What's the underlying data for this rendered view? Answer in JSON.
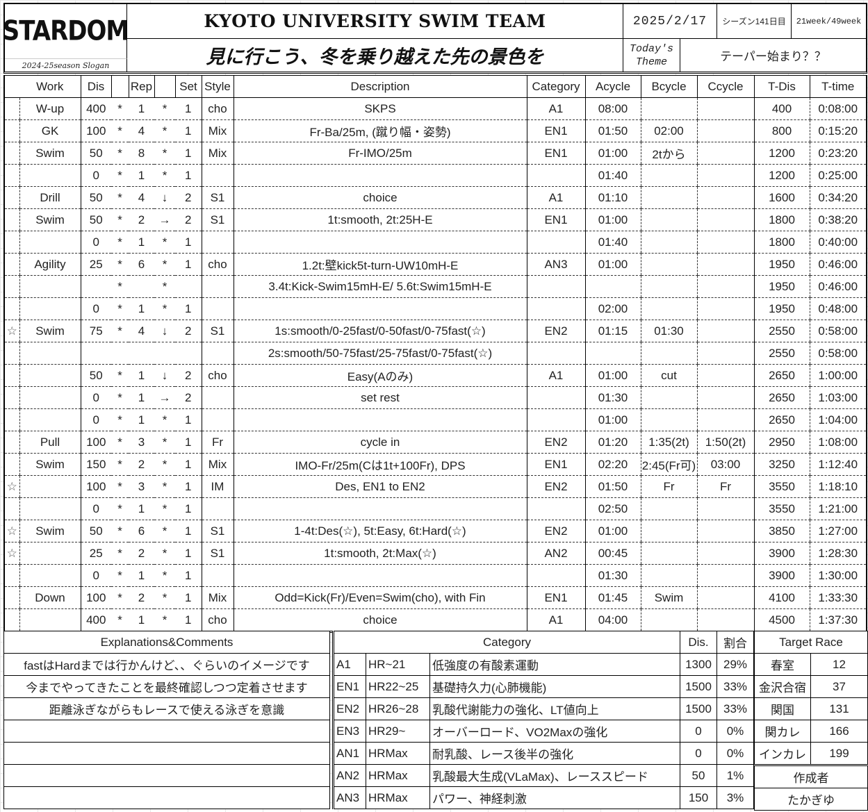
{
  "header": {
    "logo": "STARDOM",
    "slogan_label": "2024-25season Slogan",
    "team_title": "KYOTO UNIVERSITY SWIM TEAM",
    "slogan": "見に行こう、冬を乗り越えた先の景色を",
    "date": "2025/2/17",
    "season_day": "シーズン141日目",
    "week": "21week/49week",
    "theme_label_1": "Today's",
    "theme_label_2": "Theme",
    "theme": "テーパー始まり？？"
  },
  "columns": [
    "",
    "Work",
    "Dis",
    "",
    "Rep",
    "",
    "Set",
    "Style",
    "Description",
    "Category",
    "Acycle",
    "Bcycle",
    "Ccycle",
    "T-Dis",
    "T-time"
  ],
  "rows": [
    [
      "",
      "W-up",
      "400",
      "*",
      "1",
      "*",
      "1",
      "cho",
      "SKPS",
      "A1",
      "08:00",
      "",
      "",
      "400",
      "0:08:00"
    ],
    [
      "",
      "GK",
      "100",
      "*",
      "4",
      "*",
      "1",
      "Mix",
      "Fr-Ba/25m, (蹴り幅・姿勢)",
      "EN1",
      "01:50",
      "02:00",
      "",
      "800",
      "0:15:20"
    ],
    [
      "",
      "Swim",
      "50",
      "*",
      "8",
      "*",
      "1",
      "Mix",
      "Fr-IMO/25m",
      "EN1",
      "01:00",
      "2tから",
      "",
      "1200",
      "0:23:20"
    ],
    [
      "",
      "",
      "0",
      "*",
      "1",
      "*",
      "1",
      "",
      "",
      "",
      "01:40",
      "",
      "",
      "1200",
      "0:25:00"
    ],
    [
      "",
      "Drill",
      "50",
      "*",
      "4",
      "↓",
      "2",
      "S1",
      "choice",
      "A1",
      "01:10",
      "",
      "",
      "1600",
      "0:34:20"
    ],
    [
      "",
      "Swim",
      "50",
      "*",
      "2",
      "→",
      "2",
      "S1",
      "1t:smooth, 2t:25H-E",
      "EN1",
      "01:00",
      "",
      "",
      "1800",
      "0:38:20"
    ],
    [
      "",
      "",
      "0",
      "*",
      "1",
      "*",
      "1",
      "",
      "",
      "",
      "01:40",
      "",
      "",
      "1800",
      "0:40:00"
    ],
    [
      "",
      "Agility",
      "25",
      "*",
      "6",
      "*",
      "1",
      "cho",
      "1.2t:壁kick5t-turn-UW10mH-E",
      "AN3",
      "01:00",
      "",
      "",
      "1950",
      "0:46:00"
    ],
    [
      "",
      "",
      "",
      "*",
      "",
      "*",
      "",
      "",
      "3.4t:Kick-Swim15mH-E/ 5.6t:Swim15mH-E",
      "",
      "",
      "",
      "",
      "1950",
      "0:46:00"
    ],
    [
      "",
      "",
      "0",
      "*",
      "1",
      "*",
      "1",
      "",
      "",
      "",
      "02:00",
      "",
      "",
      "1950",
      "0:48:00"
    ],
    [
      "☆",
      "Swim",
      "75",
      "*",
      "4",
      "↓",
      "2",
      "S1",
      "1s:smooth/0-25fast/0-50fast/0-75fast(☆)",
      "EN2",
      "01:15",
      "01:30",
      "",
      "2550",
      "0:58:00"
    ],
    [
      "",
      "",
      "",
      "",
      "",
      "",
      "",
      "",
      "2s:smooth/50-75fast/25-75fast/0-75fast(☆)",
      "",
      "",
      "",
      "",
      "2550",
      "0:58:00"
    ],
    [
      "",
      "",
      "50",
      "*",
      "1",
      "↓",
      "2",
      "cho",
      "Easy(Aのみ)",
      "A1",
      "01:00",
      "cut",
      "",
      "2650",
      "1:00:00"
    ],
    [
      "",
      "",
      "0",
      "*",
      "1",
      "→",
      "2",
      "",
      "set rest",
      "",
      "01:30",
      "",
      "",
      "2650",
      "1:03:00"
    ],
    [
      "",
      "",
      "0",
      "*",
      "1",
      "*",
      "1",
      "",
      "",
      "",
      "01:00",
      "",
      "",
      "2650",
      "1:04:00"
    ],
    [
      "",
      "Pull",
      "100",
      "*",
      "3",
      "*",
      "1",
      "Fr",
      "cycle in",
      "EN2",
      "01:20",
      "1:35(2t)",
      "1:50(2t)",
      "2950",
      "1:08:00"
    ],
    [
      "",
      "Swim",
      "150",
      "*",
      "2",
      "*",
      "1",
      "Mix",
      "IMO-Fr/25m(Cは1t+100Fr), DPS",
      "EN1",
      "02:20",
      "2:45(Fr可)",
      "03:00",
      "3250",
      "1:12:40"
    ],
    [
      "☆",
      "",
      "100",
      "*",
      "3",
      "*",
      "1",
      "IM",
      "Des, EN1 to EN2",
      "EN2",
      "01:50",
      "Fr",
      "Fr",
      "3550",
      "1:18:10"
    ],
    [
      "",
      "",
      "0",
      "*",
      "1",
      "*",
      "1",
      "",
      "",
      "",
      "02:50",
      "",
      "",
      "3550",
      "1:21:00"
    ],
    [
      "☆",
      "Swim",
      "50",
      "*",
      "6",
      "*",
      "1",
      "S1",
      "1-4t:Des(☆), 5t:Easy, 6t:Hard(☆)",
      "EN2",
      "01:00",
      "",
      "",
      "3850",
      "1:27:00"
    ],
    [
      "☆",
      "",
      "25",
      "*",
      "2",
      "*",
      "1",
      "S1",
      "1t:smooth, 2t:Max(☆)",
      "AN2",
      "00:45",
      "",
      "",
      "3900",
      "1:28:30"
    ],
    [
      "",
      "",
      "0",
      "*",
      "1",
      "*",
      "1",
      "",
      "",
      "",
      "01:30",
      "",
      "",
      "3900",
      "1:30:00"
    ],
    [
      "",
      "Down",
      "100",
      "*",
      "2",
      "*",
      "1",
      "Mix",
      "Odd=Kick(Fr)/Even=Swim(cho), with Fin",
      "EN1",
      "01:45",
      "Swim",
      "",
      "4100",
      "1:33:30"
    ],
    [
      "",
      "",
      "400",
      "*",
      "1",
      "*",
      "1",
      "cho",
      "choice",
      "A1",
      "04:00",
      "",
      "",
      "4500",
      "1:37:30"
    ]
  ],
  "comments": {
    "title": "Explanations&Comments",
    "items": [
      "fastはHardまでは行かんけど、、ぐらいのイメージです",
      "今までやってきたことを最終確認しつつ定着させます",
      "距離泳ぎながらもレースで使える泳ぎを意識",
      "",
      "",
      "",
      ""
    ]
  },
  "category_summary": {
    "title": "Category",
    "dis_label": "Dis.",
    "ratio_label": "割合",
    "rows": [
      [
        "A1",
        "HR~21",
        "低強度の有酸素運動",
        "1300",
        "29%"
      ],
      [
        "EN1",
        "HR22~25",
        "基礎持久力(心肺機能)",
        "1500",
        "33%"
      ],
      [
        "EN2",
        "HR26~28",
        "乳酸代謝能力の強化、LT値向上",
        "1500",
        "33%"
      ],
      [
        "EN3",
        "HR29~",
        "オーバーロード、VO2Maxの強化",
        "0",
        "0%"
      ],
      [
        "AN1",
        "HRMax",
        "耐乳酸、レース後半の強化",
        "0",
        "0%"
      ],
      [
        "AN2",
        "HRMax",
        "乳酸最大生成(VLaMax)、レーススピード",
        "50",
        "1%"
      ],
      [
        "AN3",
        "HRMax",
        "パワー、神経刺激",
        "150",
        "3%"
      ]
    ]
  },
  "target_race": {
    "title": "Target Race",
    "rows": [
      [
        "春室",
        "12"
      ],
      [
        "金沢合宿",
        "37"
      ],
      [
        "関国",
        "131"
      ],
      [
        "関カレ",
        "166"
      ],
      [
        "インカレ",
        "199"
      ]
    ],
    "author_label": "作成者",
    "author": "たかぎゆ"
  }
}
